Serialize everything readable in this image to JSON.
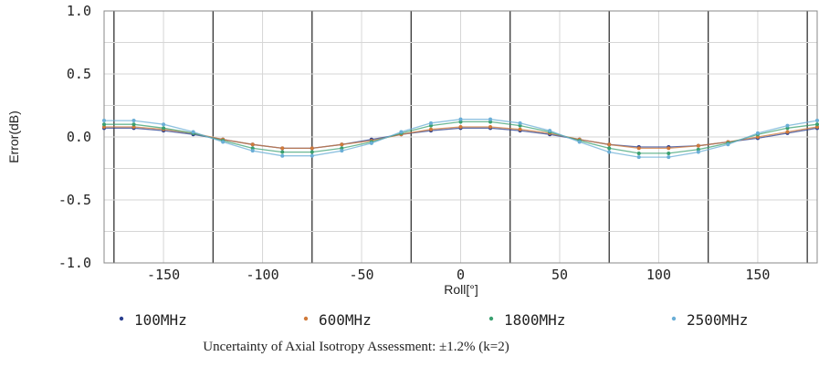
{
  "chart_data": {
    "type": "scatter",
    "xlabel": "Roll[°]",
    "ylabel": "Error(dB)",
    "xlim": [
      -180,
      180
    ],
    "ylim": [
      -1.0,
      1.0
    ],
    "x_ticks": [
      -150,
      -100,
      -50,
      0,
      50,
      100,
      150
    ],
    "y_ticks": [
      "1.0",
      "0.5",
      "0.0",
      "-0.5",
      "-1.0"
    ],
    "grid": true,
    "legend_position": "bottom",
    "caption": "Uncertainty of Axial Isotropy Assessment: ±1.2% (k=2)",
    "x": [
      -180,
      -165,
      -150,
      -135,
      -120,
      -105,
      -90,
      -75,
      -60,
      -45,
      -30,
      -15,
      0,
      15,
      30,
      45,
      60,
      75,
      90,
      105,
      120,
      135,
      150,
      165,
      180
    ],
    "series": [
      {
        "name": "100MHz",
        "color": "#2a3f8f",
        "values": [
          0.07,
          0.07,
          0.05,
          0.02,
          -0.02,
          -0.06,
          -0.09,
          -0.09,
          -0.06,
          -0.02,
          0.02,
          0.05,
          0.07,
          0.07,
          0.05,
          0.02,
          -0.02,
          -0.06,
          -0.08,
          -0.08,
          -0.07,
          -0.04,
          -0.01,
          0.03,
          0.07
        ]
      },
      {
        "name": "600MHz",
        "color": "#d07a3a",
        "values": [
          0.08,
          0.08,
          0.06,
          0.03,
          -0.02,
          -0.06,
          -0.09,
          -0.09,
          -0.06,
          -0.03,
          0.02,
          0.06,
          0.08,
          0.08,
          0.06,
          0.03,
          -0.02,
          -0.06,
          -0.09,
          -0.09,
          -0.07,
          -0.04,
          0.0,
          0.04,
          0.08
        ]
      },
      {
        "name": "1800MHz",
        "color": "#3aa070",
        "values": [
          0.1,
          0.1,
          0.07,
          0.03,
          -0.03,
          -0.09,
          -0.12,
          -0.12,
          -0.09,
          -0.04,
          0.03,
          0.09,
          0.12,
          0.12,
          0.09,
          0.04,
          -0.03,
          -0.09,
          -0.13,
          -0.13,
          -0.1,
          -0.05,
          0.02,
          0.07,
          0.1
        ]
      },
      {
        "name": "2500MHz",
        "color": "#6aaed6",
        "values": [
          0.13,
          0.13,
          0.1,
          0.04,
          -0.04,
          -0.11,
          -0.15,
          -0.15,
          -0.11,
          -0.05,
          0.04,
          0.11,
          0.14,
          0.14,
          0.11,
          0.05,
          -0.04,
          -0.12,
          -0.16,
          -0.16,
          -0.12,
          -0.06,
          0.03,
          0.09,
          0.13
        ]
      }
    ]
  }
}
